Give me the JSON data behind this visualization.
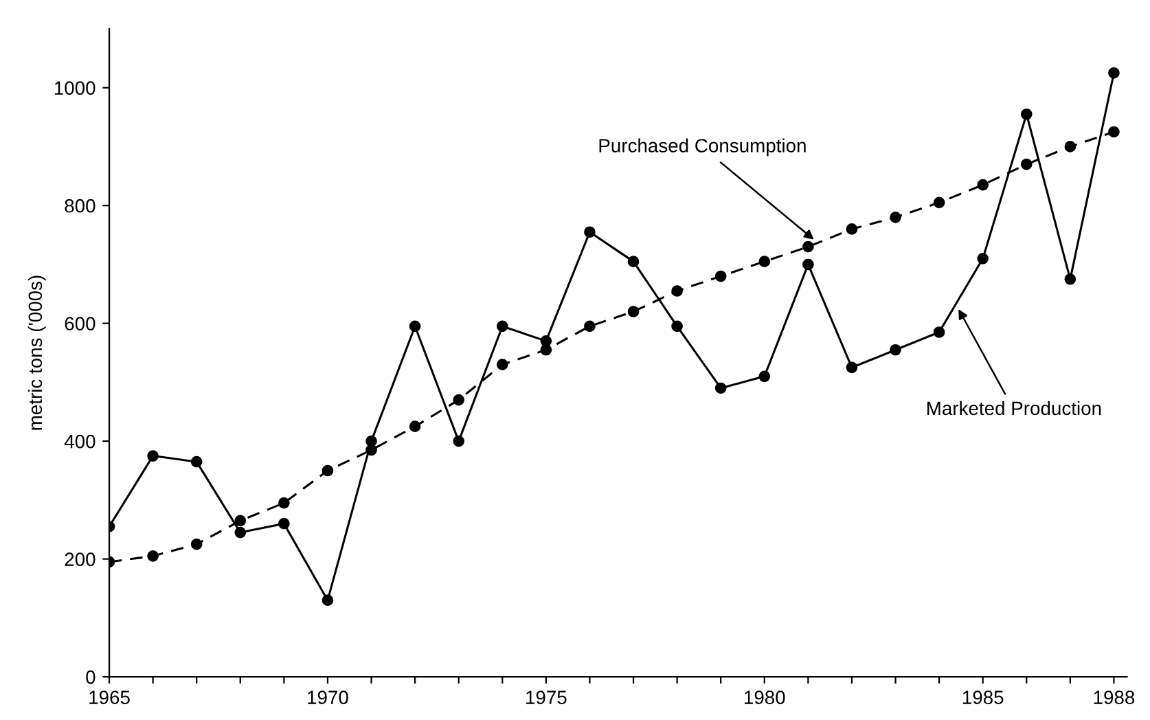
{
  "chart_data": {
    "type": "line",
    "ylabel": "metric tons ('000s)",
    "x": [
      1965,
      1966,
      1967,
      1968,
      1969,
      1970,
      1971,
      1972,
      1973,
      1974,
      1975,
      1976,
      1977,
      1978,
      1979,
      1980,
      1981,
      1982,
      1983,
      1984,
      1985,
      1986,
      1987,
      1988
    ],
    "series": [
      {
        "color": "#000000",
        "line_style": "solid",
        "values": [
          255,
          375,
          365,
          245,
          260,
          130,
          400,
          595,
          400,
          595,
          570,
          755,
          705,
          595,
          490,
          510,
          700,
          525,
          555,
          585,
          710,
          955,
          675,
          1025
        ]
      },
      {
        "color": "#000000",
        "line_style": "dashed",
        "values": [
          195,
          205,
          225,
          265,
          295,
          350,
          385,
          425,
          470,
          530,
          555,
          595,
          620,
          655,
          680,
          705,
          730,
          760,
          780,
          805,
          835,
          870,
          900,
          925
        ]
      }
    ],
    "xlim": [
      1965,
      1988.3
    ],
    "ylim": [
      0,
      1100
    ],
    "xticks": [
      1965,
      {
        "value": 1966,
        "label": null
      },
      {
        "value": 1967,
        "label": null
      },
      {
        "value": 1968,
        "label": null
      },
      {
        "value": 1969,
        "label": null
      },
      1970,
      {
        "value": 1971,
        "label": null
      },
      {
        "value": 1972,
        "label": null
      },
      {
        "value": 1973,
        "label": null
      },
      {
        "value": 1974,
        "label": null
      },
      1975,
      {
        "value": 1976,
        "label": null
      },
      {
        "value": 1977,
        "label": null
      },
      {
        "value": 1978,
        "label": null
      },
      {
        "value": 1979,
        "label": null
      },
      1980,
      {
        "value": 1981,
        "label": null
      },
      {
        "value": 1982,
        "label": null
      },
      {
        "value": 1983,
        "label": null
      },
      {
        "value": 1984,
        "label": null
      },
      1985,
      {
        "value": 1986,
        "label": null
      },
      {
        "value": 1987,
        "label": null
      },
      1988
    ],
    "yticks": [
      0,
      200,
      400,
      600,
      800,
      1000
    ],
    "marker": "circle",
    "grid": false,
    "annotations": [
      {
        "text": "Purchased Consumption",
        "x": 1981.2,
        "y": 738
      },
      {
        "text": "Marketed Production",
        "x": 1984.4,
        "y": 630
      }
    ]
  }
}
